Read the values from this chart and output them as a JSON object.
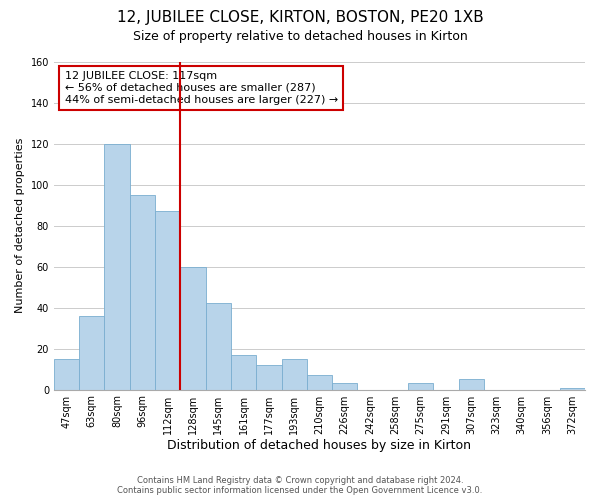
{
  "title": "12, JUBILEE CLOSE, KIRTON, BOSTON, PE20 1XB",
  "subtitle": "Size of property relative to detached houses in Kirton",
  "xlabel": "Distribution of detached houses by size in Kirton",
  "ylabel": "Number of detached properties",
  "bar_labels": [
    "47sqm",
    "63sqm",
    "80sqm",
    "96sqm",
    "112sqm",
    "128sqm",
    "145sqm",
    "161sqm",
    "177sqm",
    "193sqm",
    "210sqm",
    "226sqm",
    "242sqm",
    "258sqm",
    "275sqm",
    "291sqm",
    "307sqm",
    "323sqm",
    "340sqm",
    "356sqm",
    "372sqm"
  ],
  "bar_values": [
    15,
    36,
    120,
    95,
    87,
    60,
    42,
    17,
    12,
    15,
    7,
    3,
    0,
    0,
    3,
    0,
    5,
    0,
    0,
    0,
    1
  ],
  "bar_color": "#b8d4ea",
  "bar_edge_color": "#7aaed0",
  "vline_x_index": 4.5,
  "vline_color": "#cc0000",
  "annotation_text": "12 JUBILEE CLOSE: 117sqm\n← 56% of detached houses are smaller (287)\n44% of semi-detached houses are larger (227) →",
  "annotation_box_color": "#ffffff",
  "annotation_box_edge": "#cc0000",
  "ylim": [
    0,
    160
  ],
  "yticks": [
    0,
    20,
    40,
    60,
    80,
    100,
    120,
    140,
    160
  ],
  "footer_line1": "Contains HM Land Registry data © Crown copyright and database right 2024.",
  "footer_line2": "Contains public sector information licensed under the Open Government Licence v3.0.",
  "background_color": "#ffffff",
  "grid_color": "#cccccc",
  "title_fontsize": 11,
  "subtitle_fontsize": 9,
  "xlabel_fontsize": 9,
  "ylabel_fontsize": 8,
  "tick_fontsize": 7,
  "annotation_fontsize": 8,
  "footer_fontsize": 6
}
